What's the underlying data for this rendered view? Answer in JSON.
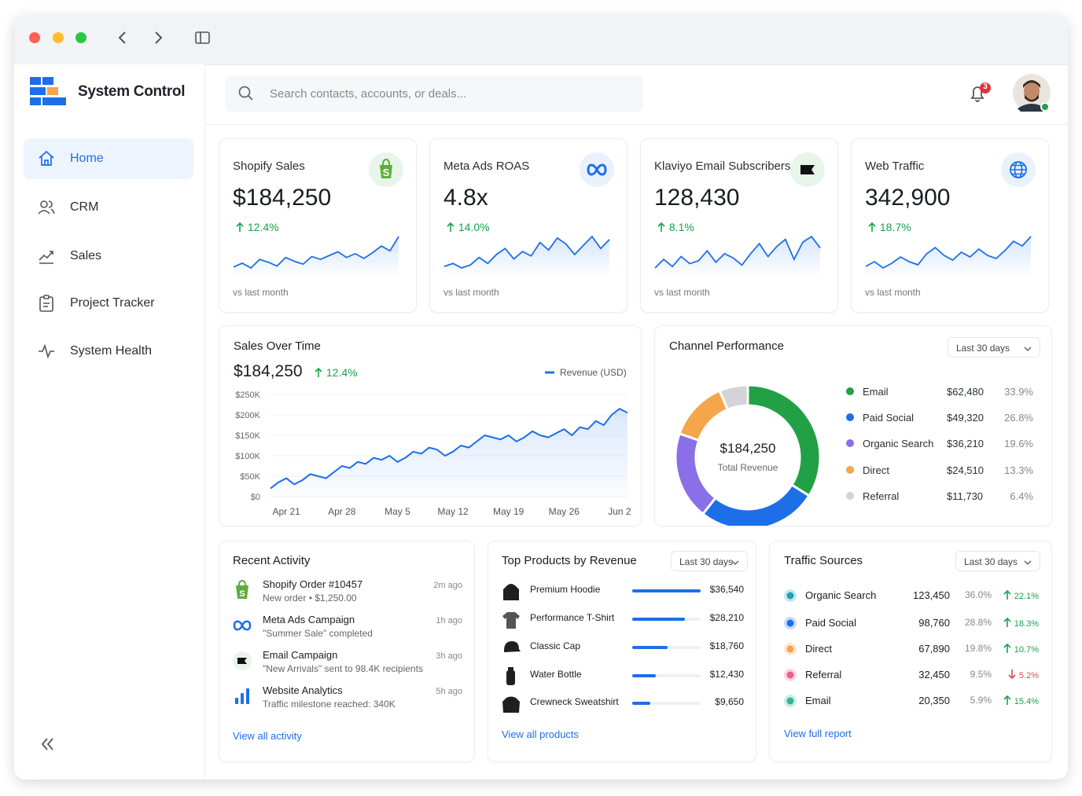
{
  "sidebar": {
    "brand": "System Control",
    "nav": [
      "Home",
      "CRM",
      "Sales",
      "Project Tracker",
      "System Health"
    ],
    "active": 0
  },
  "header": {
    "search_placeholder": "Search contacts, accounts, or deals...",
    "notifications": 3
  },
  "kpis": [
    {
      "title": "Shopify Sales",
      "value": "$184,250",
      "change": "12.4%",
      "note": "vs last month",
      "trend": [
        30,
        34,
        29,
        38,
        35,
        31,
        40,
        36,
        33,
        41,
        38,
        42,
        46,
        40,
        44,
        39,
        45,
        52,
        47,
        62
      ]
    },
    {
      "title": "Meta Ads ROAS",
      "value": "4.8x",
      "change": "14.0%",
      "note": "vs last month",
      "trend": [
        28,
        30,
        27,
        29,
        34,
        30,
        36,
        40,
        33,
        38,
        35,
        44,
        39,
        47,
        43,
        36,
        42,
        48,
        40,
        46
      ]
    },
    {
      "title": "Klaviyo Email Subscribers",
      "value": "128,430",
      "change": "8.1%",
      "note": "vs last month",
      "trend": [
        30,
        36,
        31,
        38,
        33,
        35,
        42,
        34,
        40,
        37,
        32,
        40,
        47,
        38,
        45,
        50,
        36,
        48,
        52,
        44
      ]
    },
    {
      "title": "Web Traffic",
      "value": "342,900",
      "change": "18.7%",
      "note": "vs last month",
      "trend": [
        34,
        37,
        33,
        36,
        40,
        37,
        35,
        42,
        46,
        41,
        38,
        43,
        40,
        45,
        41,
        39,
        44,
        50,
        47,
        53
      ]
    }
  ],
  "chart_data": [
    {
      "type": "line",
      "title": "Sales Over Time",
      "total": "$184,250",
      "change": "12.4%",
      "categories": [
        null,
        null,
        "Apr 21",
        null,
        null,
        null,
        null,
        null,
        null,
        "Apr 28",
        null,
        null,
        null,
        null,
        null,
        null,
        "May 5",
        null,
        null,
        null,
        null,
        null,
        null,
        "May 12",
        null,
        null,
        null,
        null,
        null,
        null,
        "May 19",
        null,
        null,
        null,
        null,
        null,
        null,
        "May 26",
        null,
        null,
        null,
        null,
        null,
        null,
        "Jun 2",
        null
      ],
      "series": [
        {
          "name": "Revenue (USD)",
          "color": "#1d6fe8",
          "values": [
            20000,
            35000,
            45000,
            30000,
            40000,
            55000,
            50000,
            45000,
            60000,
            75000,
            70000,
            85000,
            80000,
            95000,
            90000,
            100000,
            85000,
            95000,
            110000,
            105000,
            120000,
            115000,
            100000,
            110000,
            125000,
            120000,
            135000,
            150000,
            145000,
            140000,
            150000,
            135000,
            145000,
            160000,
            150000,
            145000,
            155000,
            165000,
            150000,
            170000,
            165000,
            185000,
            175000,
            200000,
            215000,
            205000
          ]
        }
      ],
      "ylim": [
        0,
        250000
      ],
      "yticks": [
        {
          "value": 0,
          "label": "$0"
        },
        {
          "value": 50000,
          "label": "$50K"
        },
        {
          "value": 100000,
          "label": "$100K"
        },
        {
          "value": 150000,
          "label": "$150K"
        },
        {
          "value": 200000,
          "label": "$200K"
        },
        {
          "value": 250000,
          "label": "$250K"
        }
      ],
      "grid": true
    },
    {
      "type": "pie",
      "title": "Channel Performance",
      "range": "Last 30 days",
      "center_value": "$184,250",
      "center_label": "Total Revenue",
      "categories": [
        "Email",
        "Paid Social",
        "Organic Search",
        "Direct",
        "Referral"
      ],
      "values": [
        62480,
        49320,
        36210,
        24510,
        11730
      ],
      "value_labels": [
        "$62,480",
        "$49,320",
        "$36,210",
        "$24,510",
        "$11,730"
      ],
      "shares": [
        "33.9%",
        "26.8%",
        "19.6%",
        "13.3%",
        "6.4%"
      ],
      "colors": [
        "#22a045",
        "#1d6fe8",
        "#8b6fe8",
        "#f5a54a",
        "#d4d4d8"
      ],
      "donut": true
    }
  ],
  "recent_activity": {
    "title": "Recent Activity",
    "link": "View all activity",
    "items": [
      {
        "title": "Shopify Order #10457",
        "detail": "New order • $1,250.00",
        "time": "2m ago"
      },
      {
        "title": "Meta Ads Campaign",
        "detail": "\"Summer Sale\" completed",
        "time": "1h ago"
      },
      {
        "title": "Email Campaign",
        "detail": "\"New Arrivals\" sent to 98.4K recipients",
        "time": "3h ago"
      },
      {
        "title": "Website Analytics",
        "detail": "Traffic milestone reached: 340K",
        "time": "5h ago"
      }
    ]
  },
  "top_products": {
    "title": "Top Products by Revenue",
    "range": "Last 30 days",
    "link": "View all products",
    "names": [
      "Premium Hoodie",
      "Performance T-Shirt",
      "Classic Cap",
      "Water Bottle",
      "Crewneck Sweatshirt"
    ],
    "values": [
      36540,
      28210,
      18760,
      12430,
      9650
    ],
    "value_labels": [
      "$36,540",
      "$28,210",
      "$18,760",
      "$12,430",
      "$9,650"
    ],
    "color": "#1d6fe8"
  },
  "traffic_sources": {
    "title": "Traffic Sources",
    "range": "Last 30 days",
    "link": "View full report",
    "rows": [
      {
        "name": "Organic Search",
        "visits": "123,450",
        "share": "36.0%",
        "change": "22.1%",
        "direction": "up"
      },
      {
        "name": "Paid Social",
        "visits": "98,760",
        "share": "28.8%",
        "change": "18.3%",
        "direction": "up"
      },
      {
        "name": "Direct",
        "visits": "67,890",
        "share": "19.8%",
        "change": "10.7%",
        "direction": "up"
      },
      {
        "name": "Referral",
        "visits": "32,450",
        "share": "9.5%",
        "change": "5.2%",
        "direction": "down"
      },
      {
        "name": "Email",
        "visits": "20,350",
        "share": "5.9%",
        "change": "15.4%",
        "direction": "up"
      }
    ]
  }
}
